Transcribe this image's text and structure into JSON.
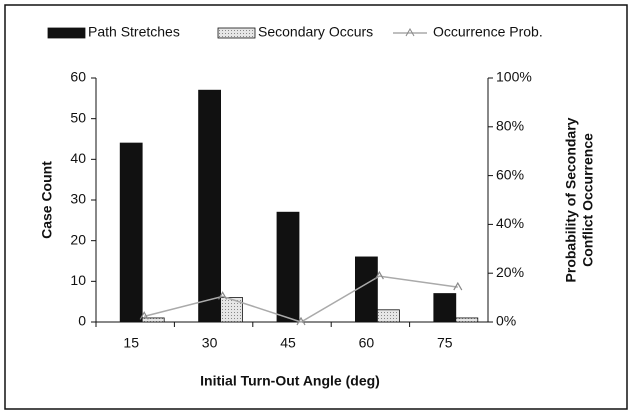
{
  "chart_data": {
    "type": "bar",
    "xlabel": "Initial Turn-Out Angle (deg)",
    "ylabel": "Case Count",
    "y2label": [
      "Probability of Secondary",
      "Conflict Occurrence"
    ],
    "categories": [
      "15",
      "30",
      "45",
      "60",
      "75"
    ],
    "series": [
      {
        "name": "Path Stretches",
        "type": "bar",
        "color": "#111111",
        "values": [
          44,
          57,
          27,
          16,
          7
        ]
      },
      {
        "name": "Secondary Occurs",
        "type": "bar",
        "color": "#d4d4d4",
        "values": [
          1,
          6,
          0,
          3,
          1
        ]
      },
      {
        "name": "Occurrence Prob.",
        "type": "line",
        "axis": "y2",
        "color": "#aaaaaa",
        "values": [
          2.3,
          10.5,
          0,
          18.8,
          14.3
        ]
      }
    ],
    "ylim": [
      0,
      60
    ],
    "yticks": [
      0,
      10,
      20,
      30,
      40,
      50,
      60
    ],
    "y2lim": [
      0,
      100
    ],
    "y2ticks": [
      {
        "value": 0,
        "label": "0%"
      },
      {
        "value": 20,
        "label": "20%"
      },
      {
        "value": 40,
        "label": "40%"
      },
      {
        "value": 60,
        "label": "60%"
      },
      {
        "value": 80,
        "label": "80%"
      },
      {
        "value": 100,
        "label": "100%"
      }
    ],
    "legend": "top"
  }
}
